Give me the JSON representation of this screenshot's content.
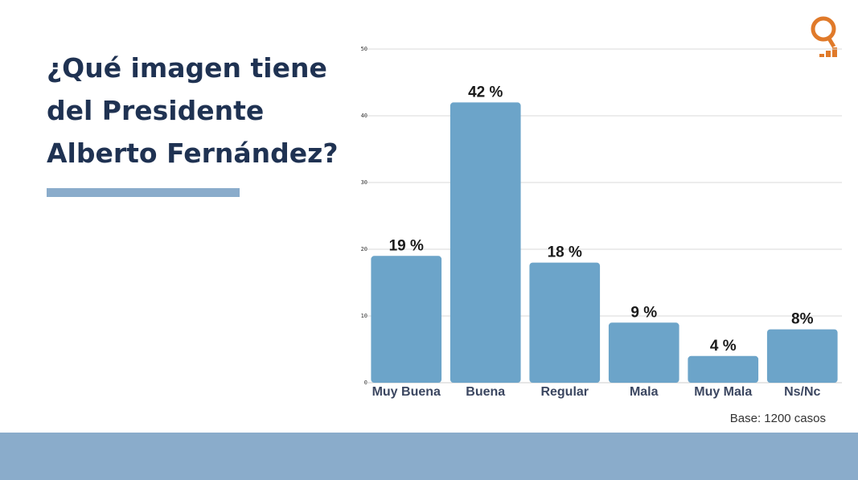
{
  "slide": {
    "title": "¿Qué imagen tiene del Presidente Alberto Fernández?",
    "base_note": "Base:  1200 casos"
  },
  "colors": {
    "title": "#1f3252",
    "accent_bar": "#8aaccb",
    "bar_fill": "#6ca4c9",
    "logo": "#e07a2a",
    "footer_band": "#8aaccb"
  },
  "logo": {
    "icon": "q-signal-logo-icon"
  },
  "chart_data": {
    "type": "bar",
    "categories": [
      "Muy Buena",
      "Buena",
      "Regular",
      "Mala",
      "Muy Mala",
      "Ns/Nc"
    ],
    "values": [
      19,
      42,
      18,
      9,
      4,
      8
    ],
    "data_labels": [
      "19 %",
      "42 %",
      "18 %",
      "9 %",
      "4 %",
      "8%"
    ],
    "y_ticks": [
      0,
      10,
      20,
      30,
      40,
      50
    ],
    "ylim": [
      0,
      50
    ],
    "grid": true
  }
}
